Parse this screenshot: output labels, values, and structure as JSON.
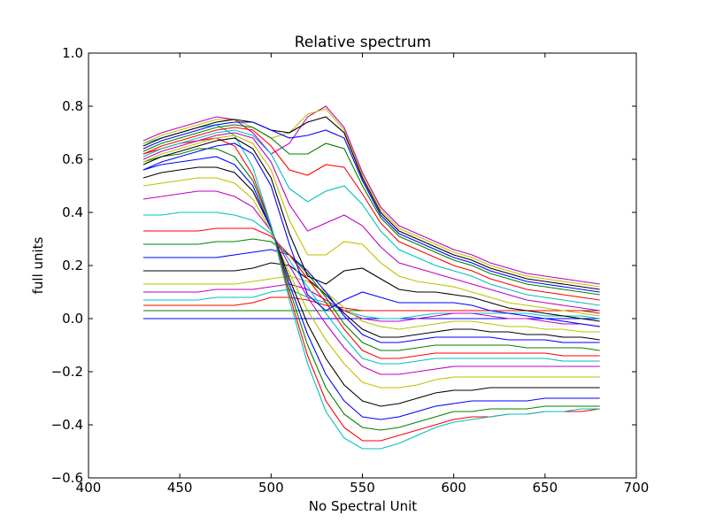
{
  "chart_data": {
    "type": "line",
    "title": "Relative spectrum",
    "xlabel": "No Spectral Unit",
    "ylabel": "full units",
    "xlim": [
      400,
      700
    ],
    "ylim": [
      -0.6,
      1.0
    ],
    "xticks": [
      400,
      450,
      500,
      550,
      600,
      650,
      700
    ],
    "yticks": [
      -0.6,
      -0.4,
      -0.2,
      0.0,
      0.2,
      0.4,
      0.6,
      0.8,
      1.0
    ],
    "xtick_labels": [
      "400",
      "450",
      "500",
      "550",
      "600",
      "650",
      "700"
    ],
    "ytick_labels": [
      "−0.6",
      "−0.4",
      "−0.2",
      "0.0",
      "0.2",
      "0.4",
      "0.6",
      "0.8",
      "1.0"
    ],
    "grid": false,
    "legend": "none",
    "x": [
      430,
      440,
      450,
      460,
      470,
      480,
      490,
      500,
      510,
      520,
      530,
      540,
      550,
      560,
      570,
      580,
      590,
      600,
      610,
      620,
      630,
      640,
      650,
      660,
      670,
      680
    ],
    "color_cycle": [
      "#0000ff",
      "#008000",
      "#ff0000",
      "#00bfbf",
      "#bf00bf",
      "#bfbf00",
      "#000000"
    ],
    "series": [
      {
        "values": [
          0.0,
          0.0,
          0.0,
          0.0,
          0.0,
          0.0,
          0.0,
          0.0,
          0.0,
          0.0,
          0.0,
          0.0,
          0.0,
          0.0,
          0.0,
          0.0,
          0.0,
          0.0,
          0.0,
          0.0,
          0.0,
          0.0,
          0.0,
          0.0,
          0.0,
          0.0
        ]
      },
      {
        "values": [
          0.03,
          0.03,
          0.03,
          0.03,
          0.03,
          0.03,
          0.03,
          0.03,
          0.03,
          0.03,
          0.03,
          0.03,
          0.03,
          0.03,
          0.03,
          0.03,
          0.03,
          0.03,
          0.03,
          0.03,
          0.03,
          0.03,
          0.03,
          0.03,
          0.03,
          0.03
        ]
      },
      {
        "values": [
          0.05,
          0.05,
          0.05,
          0.05,
          0.05,
          0.05,
          0.06,
          0.08,
          0.08,
          0.07,
          0.05,
          0.04,
          0.03,
          0.03,
          0.03,
          0.03,
          0.03,
          0.03,
          0.03,
          0.03,
          0.03,
          0.03,
          0.03,
          0.03,
          0.03,
          0.02
        ]
      },
      {
        "values": [
          0.07,
          0.07,
          0.07,
          0.07,
          0.08,
          0.08,
          0.08,
          0.1,
          0.11,
          0.08,
          0.06,
          0.03,
          0.01,
          0.0,
          0.0,
          0.01,
          0.02,
          0.02,
          0.02,
          0.02,
          0.02,
          0.02,
          0.01,
          0.01,
          0.01,
          0.0
        ]
      },
      {
        "values": [
          0.1,
          0.1,
          0.1,
          0.1,
          0.11,
          0.11,
          0.11,
          0.12,
          0.13,
          0.11,
          0.07,
          0.03,
          0.0,
          -0.01,
          -0.01,
          0.0,
          0.01,
          0.02,
          0.02,
          0.01,
          0.0,
          0.0,
          -0.01,
          -0.02,
          -0.02,
          -0.03
        ]
      },
      {
        "values": [
          0.13,
          0.13,
          0.13,
          0.13,
          0.13,
          0.13,
          0.14,
          0.15,
          0.16,
          0.14,
          0.1,
          0.04,
          -0.01,
          -0.03,
          -0.04,
          -0.03,
          -0.02,
          -0.01,
          -0.01,
          -0.02,
          -0.03,
          -0.03,
          -0.04,
          -0.04,
          -0.05,
          -0.05
        ]
      },
      {
        "values": [
          0.18,
          0.18,
          0.18,
          0.18,
          0.18,
          0.18,
          0.19,
          0.21,
          0.2,
          0.15,
          0.09,
          0.02,
          -0.04,
          -0.07,
          -0.07,
          -0.06,
          -0.05,
          -0.04,
          -0.04,
          -0.05,
          -0.05,
          -0.06,
          -0.06,
          -0.07,
          -0.07,
          -0.08
        ]
      },
      {
        "values": [
          0.23,
          0.23,
          0.23,
          0.23,
          0.23,
          0.24,
          0.25,
          0.26,
          0.24,
          0.18,
          0.1,
          0.01,
          -0.06,
          -0.09,
          -0.09,
          -0.08,
          -0.07,
          -0.07,
          -0.07,
          -0.07,
          -0.08,
          -0.08,
          -0.08,
          -0.09,
          -0.09,
          -0.09
        ]
      },
      {
        "values": [
          0.28,
          0.28,
          0.28,
          0.28,
          0.29,
          0.29,
          0.3,
          0.29,
          0.24,
          0.17,
          0.08,
          -0.02,
          -0.09,
          -0.12,
          -0.12,
          -0.11,
          -0.1,
          -0.1,
          -0.1,
          -0.1,
          -0.1,
          -0.11,
          -0.11,
          -0.11,
          -0.11,
          -0.12
        ]
      },
      {
        "values": [
          0.33,
          0.33,
          0.33,
          0.33,
          0.34,
          0.34,
          0.34,
          0.31,
          0.24,
          0.15,
          0.06,
          -0.04,
          -0.12,
          -0.15,
          -0.15,
          -0.14,
          -0.13,
          -0.13,
          -0.13,
          -0.13,
          -0.13,
          -0.13,
          -0.13,
          -0.14,
          -0.14,
          -0.14
        ]
      },
      {
        "values": [
          0.39,
          0.39,
          0.4,
          0.4,
          0.4,
          0.39,
          0.37,
          0.32,
          0.22,
          0.12,
          0.02,
          -0.07,
          -0.15,
          -0.17,
          -0.17,
          -0.16,
          -0.15,
          -0.15,
          -0.15,
          -0.15,
          -0.15,
          -0.15,
          -0.15,
          -0.16,
          -0.16,
          -0.16
        ]
      },
      {
        "values": [
          0.45,
          0.46,
          0.47,
          0.48,
          0.48,
          0.46,
          0.42,
          0.33,
          0.2,
          0.08,
          -0.02,
          -0.11,
          -0.18,
          -0.21,
          -0.21,
          -0.2,
          -0.19,
          -0.18,
          -0.18,
          -0.18,
          -0.18,
          -0.18,
          -0.18,
          -0.18,
          -0.18,
          -0.18
        ]
      },
      {
        "values": [
          0.5,
          0.51,
          0.52,
          0.53,
          0.53,
          0.51,
          0.45,
          0.33,
          0.17,
          0.03,
          -0.08,
          -0.17,
          -0.24,
          -0.26,
          -0.26,
          -0.25,
          -0.23,
          -0.22,
          -0.22,
          -0.22,
          -0.22,
          -0.22,
          -0.22,
          -0.22,
          -0.22,
          -0.22
        ]
      },
      {
        "values": [
          0.53,
          0.55,
          0.56,
          0.57,
          0.57,
          0.55,
          0.48,
          0.34,
          0.15,
          -0.02,
          -0.15,
          -0.25,
          -0.31,
          -0.33,
          -0.32,
          -0.3,
          -0.28,
          -0.27,
          -0.27,
          -0.26,
          -0.26,
          -0.26,
          -0.26,
          -0.26,
          -0.26,
          -0.26
        ]
      },
      {
        "values": [
          0.56,
          0.58,
          0.59,
          0.6,
          0.61,
          0.58,
          0.5,
          0.34,
          0.13,
          -0.06,
          -0.21,
          -0.31,
          -0.37,
          -0.38,
          -0.37,
          -0.35,
          -0.33,
          -0.32,
          -0.31,
          -0.31,
          -0.31,
          -0.31,
          -0.3,
          -0.3,
          -0.3,
          -0.3
        ]
      },
      {
        "values": [
          0.59,
          0.61,
          0.62,
          0.64,
          0.64,
          0.61,
          0.52,
          0.35,
          0.11,
          -0.1,
          -0.26,
          -0.36,
          -0.41,
          -0.42,
          -0.41,
          -0.39,
          -0.37,
          -0.35,
          -0.35,
          -0.34,
          -0.34,
          -0.34,
          -0.33,
          -0.33,
          -0.33,
          -0.33
        ]
      },
      {
        "values": [
          0.62,
          0.64,
          0.66,
          0.67,
          0.68,
          0.65,
          0.54,
          0.35,
          0.09,
          -0.14,
          -0.31,
          -0.41,
          -0.46,
          -0.46,
          -0.44,
          -0.42,
          -0.4,
          -0.38,
          -0.37,
          -0.37,
          -0.36,
          -0.36,
          -0.35,
          -0.35,
          -0.35,
          -0.34
        ]
      },
      {
        "values": [
          0.66,
          0.68,
          0.7,
          0.72,
          0.73,
          0.69,
          0.57,
          0.35,
          0.07,
          -0.17,
          -0.35,
          -0.45,
          -0.49,
          -0.49,
          -0.47,
          -0.44,
          -0.41,
          -0.39,
          -0.38,
          -0.37,
          -0.36,
          -0.36,
          -0.35,
          -0.35,
          -0.34,
          -0.34
        ]
      },
      {
        "values": [
          0.67,
          0.7,
          0.72,
          0.74,
          0.76,
          0.75,
          0.7,
          0.62,
          0.66,
          0.76,
          0.8,
          0.72,
          0.55,
          0.42,
          0.35,
          0.32,
          0.29,
          0.26,
          0.24,
          0.21,
          0.19,
          0.17,
          0.16,
          0.15,
          0.14,
          0.13
        ]
      },
      {
        "values": [
          0.66,
          0.69,
          0.71,
          0.73,
          0.75,
          0.75,
          0.72,
          0.68,
          0.7,
          0.77,
          0.79,
          0.71,
          0.54,
          0.41,
          0.34,
          0.31,
          0.28,
          0.25,
          0.23,
          0.2,
          0.18,
          0.16,
          0.15,
          0.14,
          0.13,
          0.12
        ]
      },
      {
        "values": [
          0.65,
          0.68,
          0.7,
          0.72,
          0.74,
          0.75,
          0.74,
          0.71,
          0.7,
          0.74,
          0.76,
          0.7,
          0.53,
          0.4,
          0.33,
          0.3,
          0.27,
          0.24,
          0.22,
          0.19,
          0.17,
          0.15,
          0.14,
          0.13,
          0.12,
          0.11
        ]
      },
      {
        "values": [
          0.64,
          0.67,
          0.69,
          0.71,
          0.73,
          0.74,
          0.74,
          0.71,
          0.68,
          0.69,
          0.71,
          0.68,
          0.52,
          0.39,
          0.32,
          0.29,
          0.26,
          0.23,
          0.21,
          0.18,
          0.16,
          0.14,
          0.13,
          0.12,
          0.11,
          0.1
        ]
      },
      {
        "values": [
          0.63,
          0.66,
          0.68,
          0.7,
          0.72,
          0.73,
          0.72,
          0.68,
          0.62,
          0.62,
          0.66,
          0.64,
          0.5,
          0.38,
          0.31,
          0.28,
          0.25,
          0.22,
          0.2,
          0.17,
          0.15,
          0.13,
          0.12,
          0.11,
          0.1,
          0.09
        ]
      },
      {
        "values": [
          0.62,
          0.65,
          0.67,
          0.69,
          0.71,
          0.72,
          0.71,
          0.65,
          0.56,
          0.54,
          0.58,
          0.57,
          0.47,
          0.36,
          0.29,
          0.26,
          0.23,
          0.2,
          0.18,
          0.15,
          0.13,
          0.11,
          0.1,
          0.09,
          0.08,
          0.07
        ]
      },
      {
        "values": [
          0.61,
          0.64,
          0.66,
          0.68,
          0.7,
          0.71,
          0.69,
          0.62,
          0.49,
          0.44,
          0.48,
          0.5,
          0.43,
          0.33,
          0.26,
          0.23,
          0.2,
          0.18,
          0.16,
          0.13,
          0.11,
          0.09,
          0.08,
          0.07,
          0.06,
          0.05
        ]
      },
      {
        "values": [
          0.6,
          0.63,
          0.65,
          0.67,
          0.69,
          0.7,
          0.68,
          0.59,
          0.43,
          0.33,
          0.36,
          0.39,
          0.35,
          0.27,
          0.21,
          0.19,
          0.17,
          0.15,
          0.13,
          0.11,
          0.09,
          0.07,
          0.06,
          0.05,
          0.04,
          0.03
        ]
      },
      {
        "values": [
          0.59,
          0.62,
          0.64,
          0.66,
          0.68,
          0.69,
          0.66,
          0.56,
          0.37,
          0.24,
          0.24,
          0.29,
          0.28,
          0.21,
          0.16,
          0.14,
          0.13,
          0.12,
          0.1,
          0.08,
          0.06,
          0.05,
          0.04,
          0.03,
          0.02,
          0.01
        ]
      },
      {
        "values": [
          0.58,
          0.61,
          0.63,
          0.65,
          0.67,
          0.68,
          0.64,
          0.53,
          0.32,
          0.16,
          0.13,
          0.18,
          0.19,
          0.15,
          0.11,
          0.1,
          0.1,
          0.09,
          0.08,
          0.06,
          0.04,
          0.03,
          0.02,
          0.01,
          0.0,
          -0.01
        ]
      },
      {
        "values": [
          0.56,
          0.59,
          0.61,
          0.63,
          0.65,
          0.66,
          0.62,
          0.5,
          0.28,
          0.09,
          0.03,
          0.07,
          0.1,
          0.08,
          0.06,
          0.06,
          0.06,
          0.06,
          0.05,
          0.03,
          0.02,
          0.01,
          0.0,
          -0.01,
          -0.02,
          -0.03
        ]
      }
    ]
  }
}
